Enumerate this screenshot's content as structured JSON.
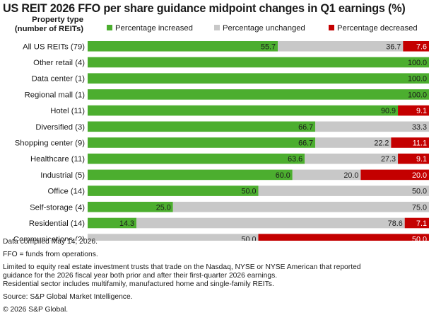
{
  "title": "US REIT 2026 FFO per share guidance midpoint changes in Q1 earnings (%)",
  "axis_title_lines": [
    "Property type",
    "(number of REITs)"
  ],
  "colors": {
    "increased": "#4cae2f",
    "unchanged": "#c8c8c8",
    "decreased": "#c40000"
  },
  "legend": [
    {
      "label": "Percentage increased",
      "color": "#4cae2f"
    },
    {
      "label": "Percentage unchanged",
      "color": "#c8c8c8"
    },
    {
      "label": "Percentage decreased",
      "color": "#c40000"
    }
  ],
  "chart_data": {
    "type": "bar",
    "orientation": "horizontal",
    "stacked": true,
    "title": "US REIT 2026 FFO per share guidance midpoint changes in Q1 earnings (%)",
    "ylabel": "Property type (number of REITs)",
    "xlim": [
      0,
      100
    ],
    "categories": [
      "All US REITs (79)",
      "Other retail (4)",
      "Data center (1)",
      "Regional mall (1)",
      "Hotel (11)",
      "Diversified (3)",
      "Shopping center (9)",
      "Healthcare (11)",
      "Industrial (5)",
      "Office (14)",
      "Self-storage (4)",
      "Residential (14)",
      "Communications (2)"
    ],
    "series": [
      {
        "name": "Percentage increased",
        "values": [
          55.7,
          100.0,
          100.0,
          100.0,
          90.9,
          66.7,
          66.7,
          63.6,
          60.0,
          50.0,
          25.0,
          14.3,
          0
        ]
      },
      {
        "name": "Percentage unchanged",
        "values": [
          36.7,
          0,
          0,
          0,
          0,
          33.3,
          22.2,
          27.3,
          20.0,
          50.0,
          75.0,
          78.6,
          50.0
        ]
      },
      {
        "name": "Percentage decreased",
        "values": [
          7.6,
          0,
          0,
          0,
          9.1,
          0,
          11.1,
          9.1,
          20.0,
          0,
          0,
          7.1,
          50.0
        ]
      }
    ],
    "data_labels": [
      [
        "55.7",
        "36.7",
        "7.6"
      ],
      [
        "100.0",
        "",
        ""
      ],
      [
        "100.0",
        "",
        ""
      ],
      [
        "100.0",
        "",
        ""
      ],
      [
        "90.9",
        "",
        "9.1"
      ],
      [
        "66.7",
        "33.3",
        ""
      ],
      [
        "66.7",
        "22.2",
        "11.1"
      ],
      [
        "63.6",
        "27.3",
        "9.1"
      ],
      [
        "60.0",
        "20.0",
        "20.0"
      ],
      [
        "50.0",
        "50.0",
        ""
      ],
      [
        "25.0",
        "75.0",
        ""
      ],
      [
        "14.3",
        "78.6",
        "7.1"
      ],
      [
        "",
        "50.0",
        "50.0"
      ]
    ],
    "grid": false,
    "legend_position": "top"
  },
  "notes": [
    "Data compiled May 14, 2026.",
    "FFO = funds from operations.",
    "Limited to equity real estate investment trusts that trade on the Nasdaq, NYSE or NYSE American that reported",
    "guidance for the 2026 fiscal year both prior and after their first-quarter 2026 earnings.",
    "Residential sector includes multifamily, manufactured home and single-family REITs.",
    "Source: S&P Global Market Intelligence.",
    "© 2026 S&P Global."
  ]
}
